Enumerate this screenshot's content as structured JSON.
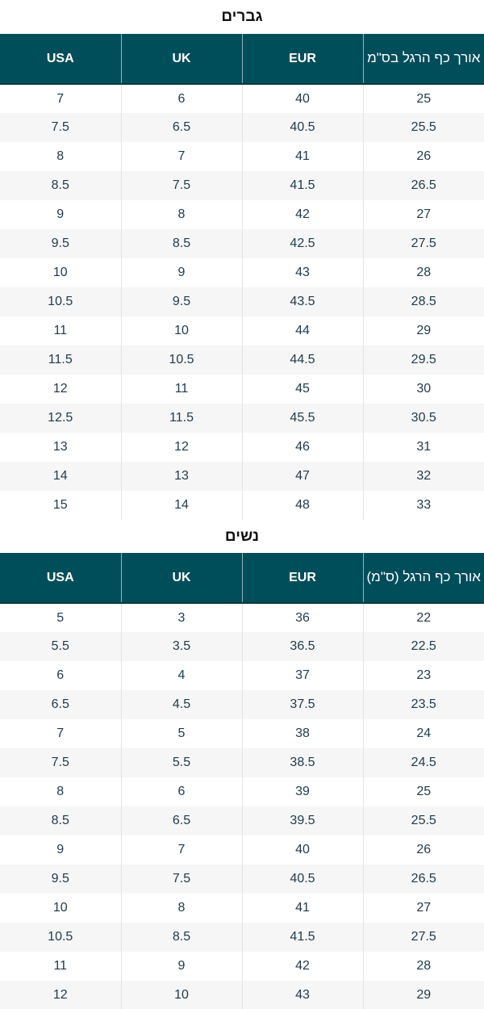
{
  "men": {
    "title": "גברים",
    "headers": [
      "USA",
      "UK",
      "EUR",
      "אורך כף הרגל בס\"מ"
    ],
    "rows": [
      [
        "7",
        "6",
        "40",
        "25"
      ],
      [
        "7.5",
        "6.5",
        "40.5",
        "25.5"
      ],
      [
        "8",
        "7",
        "41",
        "26"
      ],
      [
        "8.5",
        "7.5",
        "41.5",
        "26.5"
      ],
      [
        "9",
        "8",
        "42",
        "27"
      ],
      [
        "9.5",
        "8.5",
        "42.5",
        "27.5"
      ],
      [
        "10",
        "9",
        "43",
        "28"
      ],
      [
        "10.5",
        "9.5",
        "43.5",
        "28.5"
      ],
      [
        "11",
        "10",
        "44",
        "29"
      ],
      [
        "11.5",
        "10.5",
        "44.5",
        "29.5"
      ],
      [
        "12",
        "11",
        "45",
        "30"
      ],
      [
        "12.5",
        "11.5",
        "45.5",
        "30.5"
      ],
      [
        "13",
        "12",
        "46",
        "31"
      ],
      [
        "14",
        "13",
        "47",
        "32"
      ],
      [
        "15",
        "14",
        "48",
        "33"
      ]
    ]
  },
  "women": {
    "title": "נשים",
    "headers": [
      "USA",
      "UK",
      "EUR",
      "אורך כף הרגל (ס\"מ)"
    ],
    "rows": [
      [
        "5",
        "3",
        "36",
        "22"
      ],
      [
        "5.5",
        "3.5",
        "36.5",
        "22.5"
      ],
      [
        "6",
        "4",
        "37",
        "23"
      ],
      [
        "6.5",
        "4.5",
        "37.5",
        "23.5"
      ],
      [
        "7",
        "5",
        "38",
        "24"
      ],
      [
        "7.5",
        "5.5",
        "38.5",
        "24.5"
      ],
      [
        "8",
        "6",
        "39",
        "25"
      ],
      [
        "8.5",
        "6.5",
        "39.5",
        "25.5"
      ],
      [
        "9",
        "7",
        "40",
        "26"
      ],
      [
        "9.5",
        "7.5",
        "40.5",
        "26.5"
      ],
      [
        "10",
        "8",
        "41",
        "27"
      ],
      [
        "10.5",
        "8.5",
        "41.5",
        "27.5"
      ],
      [
        "11",
        "9",
        "42",
        "28"
      ],
      [
        "12",
        "10",
        "43",
        "29"
      ]
    ]
  }
}
